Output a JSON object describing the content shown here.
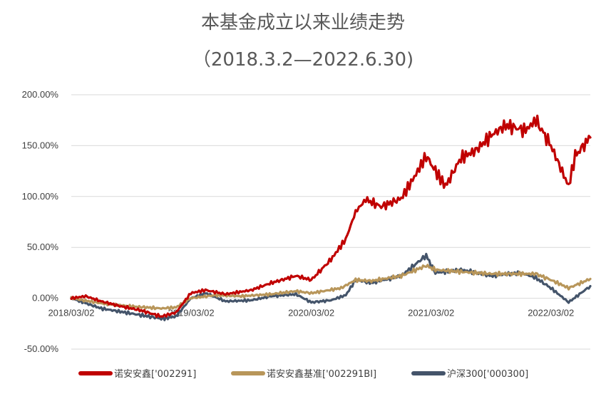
{
  "chart_data": {
    "type": "line",
    "title": "本基金成立以来业绩走势",
    "subtitle": "（2018.3.2—2022.6.30)",
    "ylim": [
      -50,
      200
    ],
    "y_ticks": [
      200,
      150,
      100,
      50,
      0,
      -50
    ],
    "y_tick_labels": [
      "200.00%",
      "150.00%",
      "100.00%",
      "50.00%",
      "0.00%",
      "-50.00%"
    ],
    "x_tick_labels": [
      "2018/03/02",
      "2019/03/02",
      "2020/03/02",
      "2021/03/02",
      "2022/03/02"
    ],
    "x_tick_labels_display": [
      "2018/03/02",
      "2019/03/02",
      "2020/03/02",
      "2021/03/02",
      "2022/03/02"
    ],
    "grid": true,
    "legend_position": "bottom",
    "series": [
      {
        "name": "诺安安鑫['002291]",
        "color": "#c00000",
        "x": [
          "2018-03-02",
          "2018-04-15",
          "2018-06-01",
          "2018-08-01",
          "2018-10-01",
          "2018-12-01",
          "2019-01-15",
          "2019-03-01",
          "2019-04-15",
          "2019-06-15",
          "2019-09-01",
          "2019-11-01",
          "2020-01-15",
          "2020-03-02",
          "2020-05-01",
          "2020-06-15",
          "2020-07-15",
          "2020-08-15",
          "2020-10-01",
          "2020-12-01",
          "2021-01-15",
          "2021-02-15",
          "2021-03-15",
          "2021-04-15",
          "2021-06-01",
          "2021-07-15",
          "2021-09-01",
          "2021-10-15",
          "2021-12-15",
          "2022-01-15",
          "2022-03-02",
          "2022-04-25",
          "2022-05-15",
          "2022-06-30"
        ],
        "values": [
          0,
          2,
          -3,
          -8,
          -12,
          -18,
          -14,
          5,
          8,
          4,
          8,
          15,
          22,
          18,
          38,
          58,
          85,
          97,
          90,
          98,
          122,
          140,
          125,
          110,
          138,
          145,
          160,
          170,
          165,
          175,
          150,
          110,
          140,
          158
        ]
      },
      {
        "name": "诺安安鑫基准['002291BI]",
        "color": "#b8965a",
        "x": [
          "2018-03-02",
          "2018-06-01",
          "2018-09-01",
          "2018-12-01",
          "2019-01-15",
          "2019-03-01",
          "2019-05-15",
          "2019-08-01",
          "2019-11-01",
          "2020-01-15",
          "2020-03-02",
          "2020-06-01",
          "2020-07-15",
          "2020-09-01",
          "2020-12-01",
          "2021-02-15",
          "2021-03-15",
          "2021-06-01",
          "2021-09-01",
          "2021-12-01",
          "2022-01-15",
          "2022-03-02",
          "2022-04-25",
          "2022-06-30"
        ],
        "values": [
          0,
          -5,
          -8,
          -10,
          -9,
          0,
          3,
          2,
          4,
          7,
          5,
          10,
          18,
          17,
          22,
          32,
          28,
          26,
          24,
          24,
          24,
          18,
          10,
          19
        ]
      },
      {
        "name": "沪深300['000300]",
        "color": "#44546a",
        "x": [
          "2018-03-02",
          "2018-06-01",
          "2018-09-01",
          "2018-12-01",
          "2019-01-15",
          "2019-03-01",
          "2019-04-15",
          "2019-06-15",
          "2019-09-01",
          "2019-11-01",
          "2020-01-15",
          "2020-03-02",
          "2020-05-01",
          "2020-06-15",
          "2020-07-15",
          "2020-09-01",
          "2020-12-01",
          "2021-02-15",
          "2021-03-15",
          "2021-06-01",
          "2021-09-01",
          "2021-12-01",
          "2022-01-15",
          "2022-03-02",
          "2022-04-25",
          "2022-06-30"
        ],
        "values": [
          0,
          -10,
          -15,
          -20,
          -18,
          0,
          5,
          -3,
          -2,
          2,
          4,
          -4,
          -2,
          3,
          18,
          15,
          22,
          42,
          25,
          28,
          22,
          25,
          20,
          10,
          -4,
          12
        ]
      }
    ]
  }
}
